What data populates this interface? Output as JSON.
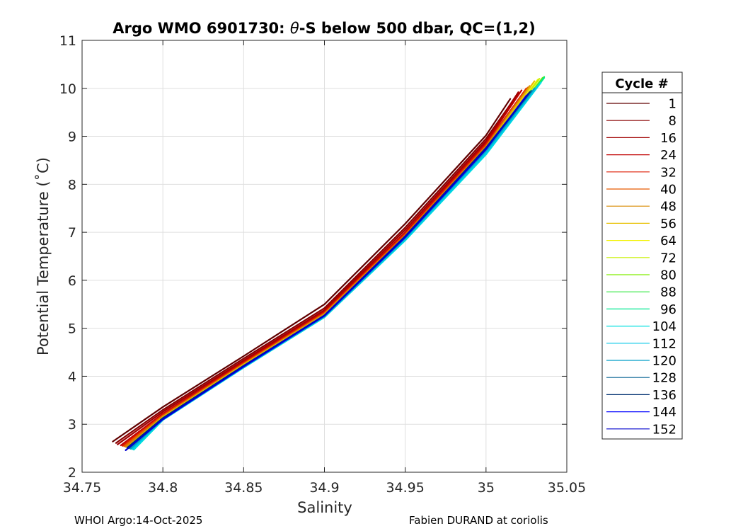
{
  "chart_data": {
    "type": "line",
    "title_prefix": "Argo WMO 6901730: ",
    "title_symbol": "θ",
    "title_suffix": "-S below 500 dbar,  QC=(1,2)",
    "xlabel": "Salinity",
    "ylabel": "Potential Temperature (˚C)",
    "xlim": [
      34.75,
      35.05
    ],
    "ylim": [
      2,
      11
    ],
    "xticks": [
      34.75,
      34.8,
      34.85,
      34.9,
      34.95,
      35,
      35.05
    ],
    "xtick_labels": [
      "34.75",
      "34.8",
      "34.85",
      "34.9",
      "34.95",
      "35",
      "35.05"
    ],
    "yticks": [
      2,
      3,
      4,
      5,
      6,
      7,
      8,
      9,
      10,
      11
    ],
    "ytick_labels": [
      "2",
      "3",
      "4",
      "5",
      "6",
      "7",
      "8",
      "9",
      "10",
      "11"
    ],
    "grid": true,
    "legend_title": "Cycle #",
    "legend_position": "outside-right",
    "series": [
      {
        "name": "1",
        "color": "#600000",
        "points": [
          [
            34.769,
            2.64
          ],
          [
            34.8,
            3.36
          ],
          [
            34.85,
            4.42
          ],
          [
            34.9,
            5.5
          ],
          [
            34.95,
            7.18
          ],
          [
            35.0,
            9.02
          ],
          [
            35.015,
            9.78
          ]
        ]
      },
      {
        "name": "8",
        "color": "#8a0000",
        "points": [
          [
            34.771,
            2.61
          ],
          [
            34.8,
            3.3
          ],
          [
            34.85,
            4.37
          ],
          [
            34.9,
            5.42
          ],
          [
            34.95,
            7.1
          ],
          [
            35.0,
            8.95
          ],
          [
            35.02,
            9.9
          ]
        ]
      },
      {
        "name": "16",
        "color": "#a00000",
        "points": [
          [
            34.772,
            2.58
          ],
          [
            34.8,
            3.26
          ],
          [
            34.85,
            4.33
          ],
          [
            34.9,
            5.38
          ],
          [
            34.95,
            7.05
          ],
          [
            35.0,
            8.9
          ],
          [
            35.02,
            9.92
          ]
        ]
      },
      {
        "name": "24",
        "color": "#c00000",
        "points": [
          [
            34.774,
            2.56
          ],
          [
            34.8,
            3.22
          ],
          [
            34.85,
            4.3
          ],
          [
            34.9,
            5.35
          ],
          [
            34.95,
            7.0
          ],
          [
            35.0,
            8.86
          ],
          [
            35.022,
            9.96
          ]
        ]
      },
      {
        "name": "32",
        "color": "#dd1a00",
        "points": [
          [
            34.775,
            2.55
          ],
          [
            34.8,
            3.2
          ],
          [
            34.85,
            4.28
          ],
          [
            34.9,
            5.33
          ],
          [
            34.95,
            6.97
          ],
          [
            35.0,
            8.83
          ],
          [
            35.025,
            10.0
          ]
        ]
      },
      {
        "name": "40",
        "color": "#e85a00",
        "points": [
          [
            34.776,
            2.54
          ],
          [
            34.8,
            3.18
          ],
          [
            34.85,
            4.26
          ],
          [
            34.9,
            5.31
          ],
          [
            34.95,
            6.95
          ],
          [
            35.0,
            8.8
          ],
          [
            35.026,
            10.02
          ]
        ]
      },
      {
        "name": "48",
        "color": "#d98a00",
        "points": [
          [
            34.777,
            2.53
          ],
          [
            34.8,
            3.16
          ],
          [
            34.85,
            4.25
          ],
          [
            34.9,
            5.3
          ],
          [
            34.95,
            6.93
          ],
          [
            35.0,
            8.78
          ],
          [
            35.027,
            10.05
          ]
        ]
      },
      {
        "name": "56",
        "color": "#e8c000",
        "points": [
          [
            34.778,
            2.52
          ],
          [
            34.8,
            3.15
          ],
          [
            34.85,
            4.24
          ],
          [
            34.9,
            5.28
          ],
          [
            34.95,
            6.91
          ],
          [
            35.0,
            8.75
          ],
          [
            35.03,
            10.15
          ]
        ]
      },
      {
        "name": "64",
        "color": "#f2f200",
        "points": [
          [
            34.779,
            2.51
          ],
          [
            34.8,
            3.13
          ],
          [
            34.85,
            4.22
          ],
          [
            34.9,
            5.27
          ],
          [
            34.95,
            6.89
          ],
          [
            35.0,
            8.72
          ],
          [
            35.032,
            10.18
          ]
        ]
      },
      {
        "name": "72",
        "color": "#c8f000",
        "points": [
          [
            34.78,
            2.5
          ],
          [
            34.8,
            3.12
          ],
          [
            34.85,
            4.21
          ],
          [
            34.9,
            5.26
          ],
          [
            34.95,
            6.87
          ],
          [
            35.0,
            8.7
          ],
          [
            35.033,
            10.2
          ]
        ]
      },
      {
        "name": "80",
        "color": "#80ee00",
        "points": [
          [
            34.78,
            2.49
          ],
          [
            34.8,
            3.11
          ],
          [
            34.85,
            4.2
          ],
          [
            34.9,
            5.25
          ],
          [
            34.95,
            6.86
          ],
          [
            35.0,
            8.68
          ],
          [
            35.035,
            10.22
          ]
        ]
      },
      {
        "name": "88",
        "color": "#30e840",
        "points": [
          [
            34.781,
            2.48
          ],
          [
            34.8,
            3.1
          ],
          [
            34.85,
            4.19
          ],
          [
            34.9,
            5.24
          ],
          [
            34.95,
            6.85
          ],
          [
            35.0,
            8.66
          ],
          [
            35.036,
            10.24
          ]
        ]
      },
      {
        "name": "96",
        "color": "#00e890",
        "points": [
          [
            34.782,
            2.47
          ],
          [
            34.8,
            3.09
          ],
          [
            34.85,
            4.18
          ],
          [
            34.9,
            5.23
          ],
          [
            34.95,
            6.84
          ],
          [
            35.0,
            8.64
          ],
          [
            35.036,
            10.22
          ]
        ]
      },
      {
        "name": "104",
        "color": "#00e0e0",
        "points": [
          [
            34.782,
            2.47
          ],
          [
            34.8,
            3.09
          ],
          [
            34.85,
            4.18
          ],
          [
            34.9,
            5.23
          ],
          [
            34.95,
            6.83
          ],
          [
            35.0,
            8.62
          ],
          [
            35.034,
            10.12
          ]
        ]
      },
      {
        "name": "112",
        "color": "#00c8e8",
        "points": [
          [
            34.781,
            2.48
          ],
          [
            34.8,
            3.1
          ],
          [
            34.85,
            4.19
          ],
          [
            34.9,
            5.24
          ],
          [
            34.95,
            6.85
          ],
          [
            35.0,
            8.65
          ],
          [
            35.032,
            10.05
          ]
        ]
      },
      {
        "name": "120",
        "color": "#009ec8",
        "points": [
          [
            34.78,
            2.49
          ],
          [
            34.8,
            3.11
          ],
          [
            34.85,
            4.2
          ],
          [
            34.9,
            5.25
          ],
          [
            34.95,
            6.88
          ],
          [
            35.0,
            8.7
          ],
          [
            35.03,
            10.0
          ]
        ]
      },
      {
        "name": "128",
        "color": "#006090",
        "points": [
          [
            34.779,
            2.5
          ],
          [
            34.8,
            3.12
          ],
          [
            34.85,
            4.21
          ],
          [
            34.9,
            5.26
          ],
          [
            34.95,
            6.9
          ],
          [
            35.0,
            8.74
          ],
          [
            35.028,
            9.95
          ]
        ]
      },
      {
        "name": "136",
        "color": "#003070",
        "points": [
          [
            34.778,
            2.51
          ],
          [
            34.8,
            3.13
          ],
          [
            34.85,
            4.22
          ],
          [
            34.9,
            5.27
          ],
          [
            34.95,
            6.92
          ],
          [
            35.0,
            8.76
          ],
          [
            35.027,
            9.92
          ]
        ]
      },
      {
        "name": "144",
        "color": "#0000ff",
        "points": [
          [
            34.777,
            2.46
          ],
          [
            34.8,
            3.1
          ],
          [
            34.85,
            4.2
          ],
          [
            34.9,
            5.26
          ],
          [
            34.95,
            6.9
          ],
          [
            35.0,
            8.73
          ],
          [
            35.025,
            9.85
          ]
        ]
      },
      {
        "name": "152",
        "color": "#0000cc",
        "points": [
          [
            34.777,
            2.46
          ],
          [
            34.8,
            3.11
          ],
          [
            34.85,
            4.21
          ],
          [
            34.9,
            5.27
          ],
          [
            34.95,
            6.91
          ],
          [
            35.0,
            8.74
          ],
          [
            35.026,
            9.88
          ]
        ]
      }
    ]
  },
  "footer": {
    "left": "WHOI Argo:14-Oct-2025",
    "right": "Fabien DURAND at coriolis"
  }
}
